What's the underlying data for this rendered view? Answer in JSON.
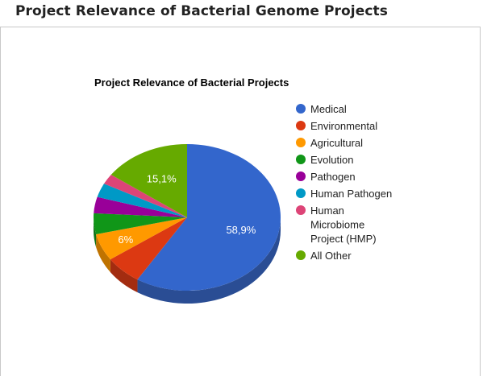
{
  "page": {
    "title": "Project Relevance of Bacterial Genome Projects"
  },
  "chart_data": {
    "type": "pie",
    "style": "3d",
    "title": "Project Relevance of Bacterial Projects",
    "legend_position": "right",
    "slices": [
      {
        "name": "Medical",
        "value": 58.9,
        "color": "#3366cc",
        "side_color": "#2a4d94",
        "label": "58,9%"
      },
      {
        "name": "Environmental",
        "value": 6.4,
        "color": "#dc3912",
        "side_color": "#a32c10",
        "label": ""
      },
      {
        "name": "Agricultural",
        "value": 6.0,
        "color": "#ff9900",
        "side_color": "#bf7300",
        "label": "6%"
      },
      {
        "name": "Evolution",
        "value": 4.6,
        "color": "#109618",
        "side_color": "#0c7012",
        "label": ""
      },
      {
        "name": "Pathogen",
        "value": 3.6,
        "color": "#990099",
        "side_color": "#730073",
        "label": ""
      },
      {
        "name": "Human Pathogen",
        "value": 3.1,
        "color": "#0099c6",
        "side_color": "#007394",
        "label": ""
      },
      {
        "name": "Human Microbiome Project (HMP)",
        "value": 2.3,
        "color": "#dd4477",
        "side_color": "#a63359",
        "label": ""
      },
      {
        "name": "All Other",
        "value": 15.1,
        "color": "#66aa00",
        "side_color": "#4d8000",
        "label": "15,1%"
      }
    ],
    "legend_lines": [
      [
        "Medical"
      ],
      [
        "Environmental"
      ],
      [
        "Agricultural"
      ],
      [
        "Evolution"
      ],
      [
        "Pathogen"
      ],
      [
        "Human Pathogen"
      ],
      [
        "Human",
        "Microbiome",
        "Project (HMP)"
      ],
      [
        "All Other"
      ]
    ]
  }
}
